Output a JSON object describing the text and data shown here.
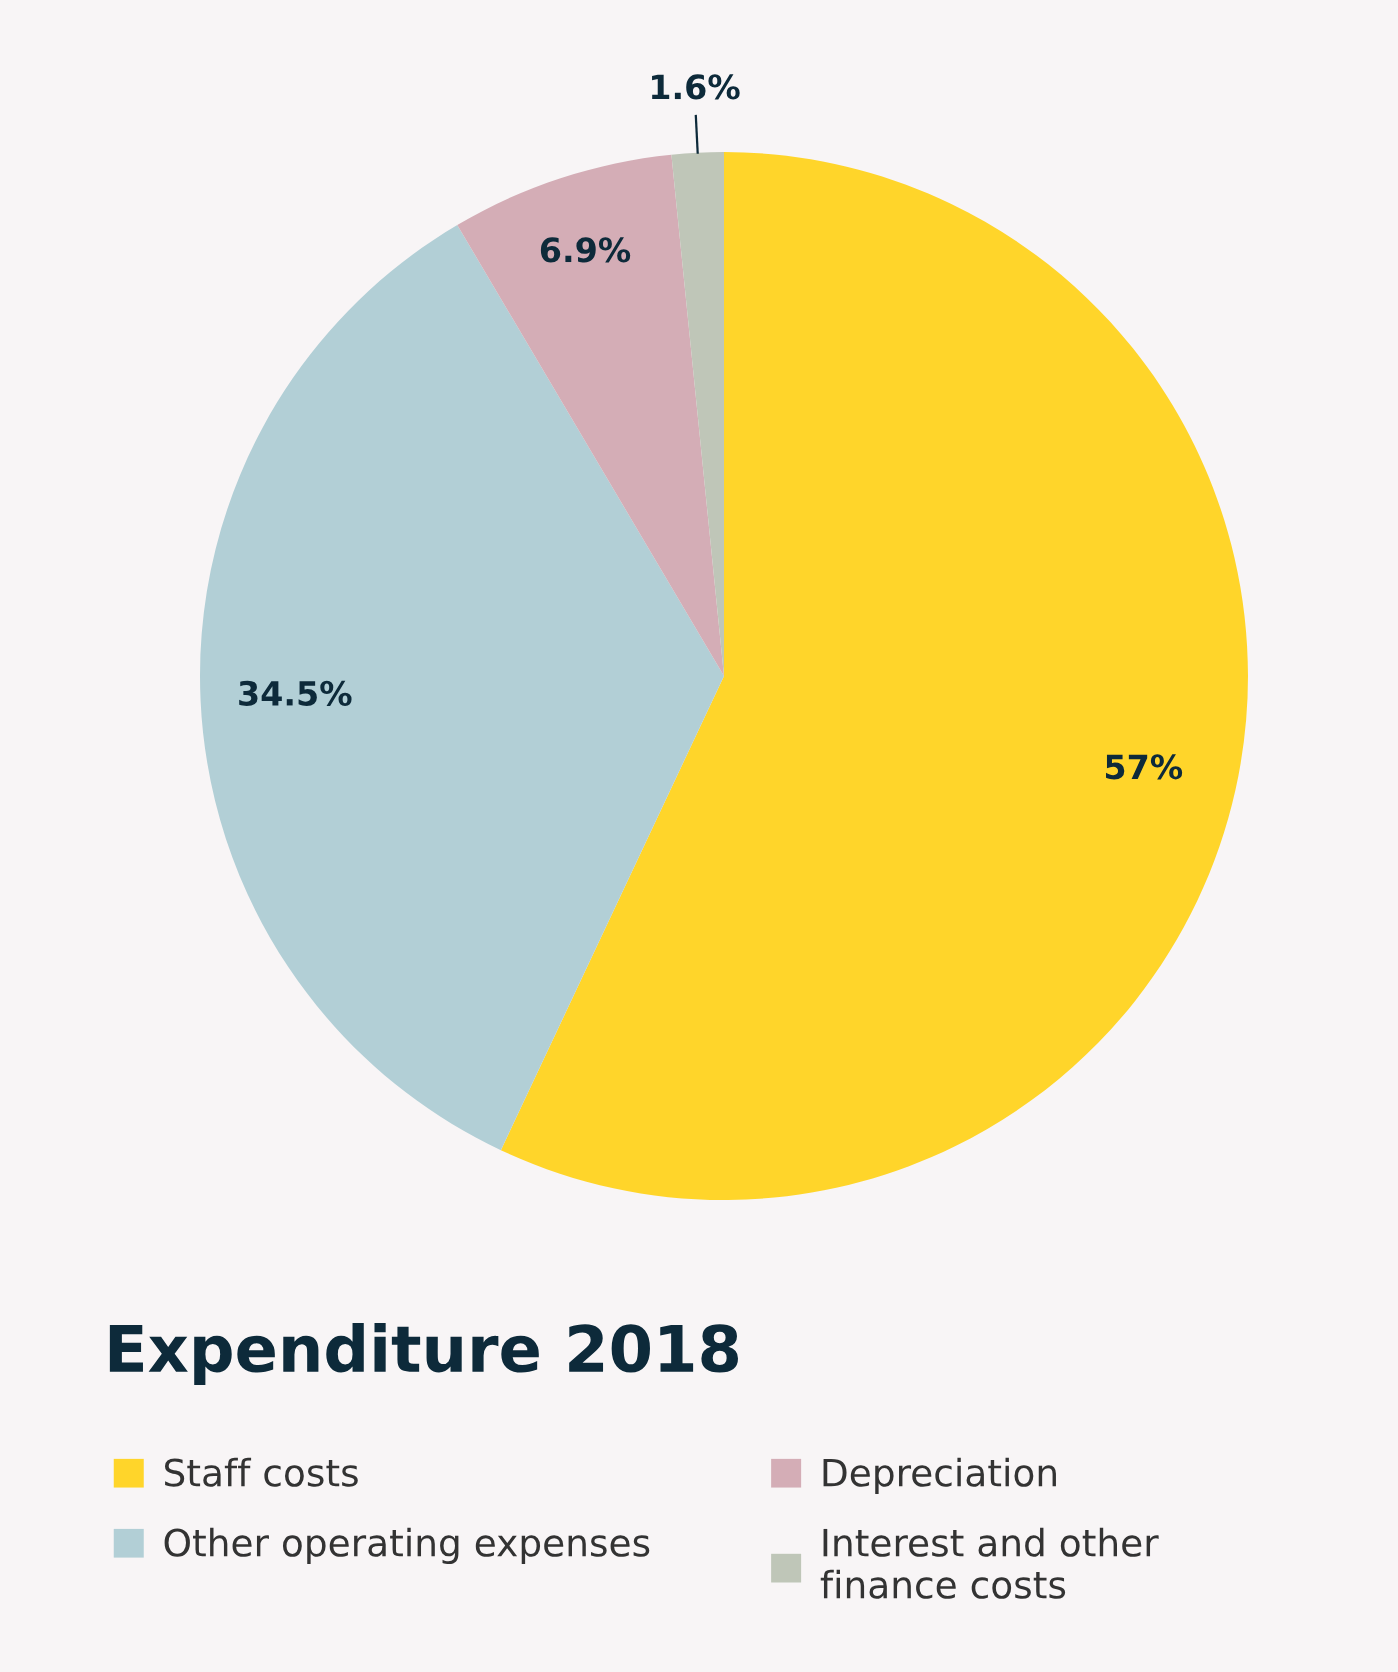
{
  "chart_data": {
    "type": "pie",
    "title": "Expenditure 2018",
    "categories": [
      "Staff costs",
      "Other operating expenses",
      "Depreciation",
      "Interest and other finance costs"
    ],
    "values": [
      57,
      34.5,
      6.9,
      1.6
    ],
    "value_labels": [
      "57%",
      "34.5%",
      "6.9%",
      "1.6%"
    ],
    "colors": [
      "#ffd52a",
      "#b2cfd6",
      "#d4adb6",
      "#bfc6b8"
    ],
    "legend": "bottom"
  }
}
